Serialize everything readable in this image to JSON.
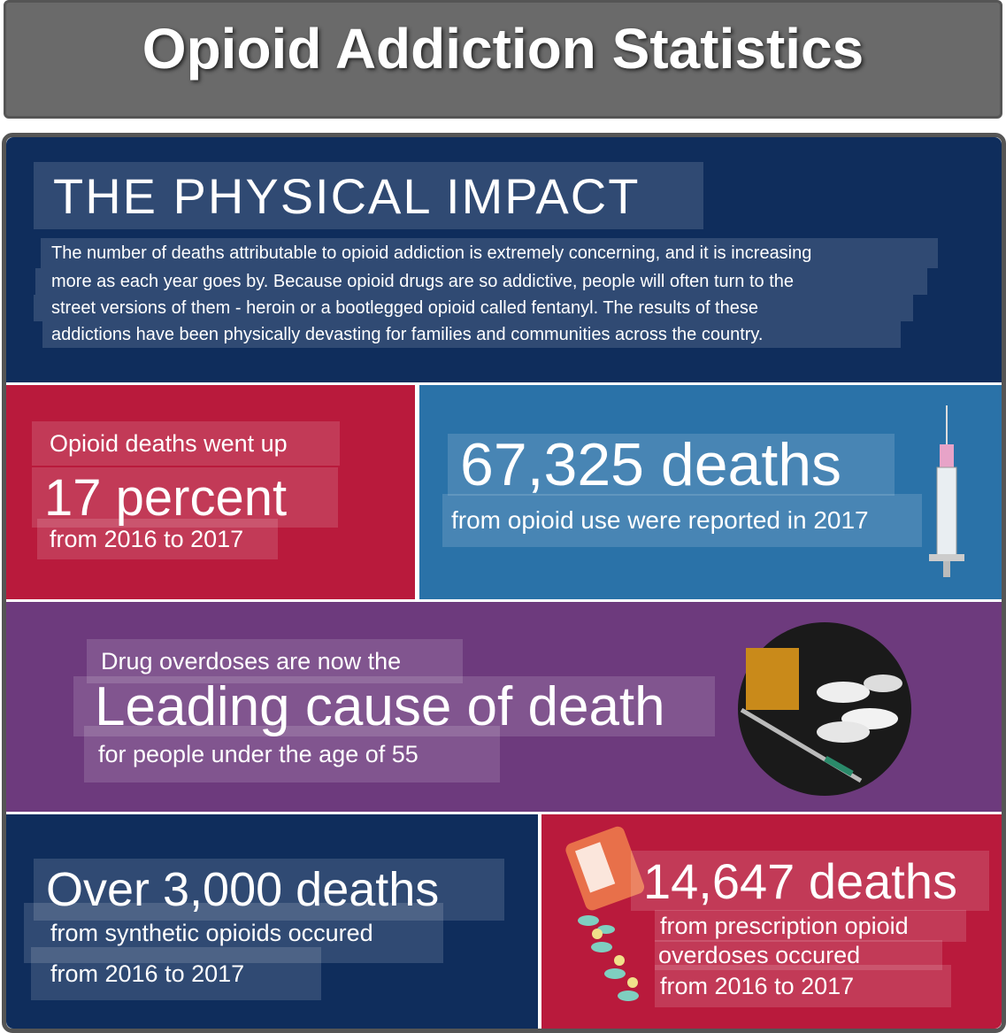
{
  "header": {
    "title": "Opioid Addiction Statistics"
  },
  "intro": {
    "heading": "THE PHYSICAL IMPACT",
    "lines": [
      "The number of deaths attributable to opioid addiction is extremely concerning, and it is increasing",
      "more as each year goes by. Because opioid drugs are so addictive, people will often turn to the",
      "street versions of them - heroin or a bootlegged opioid called fentanyl. The results of these",
      "addictions have been physically devasting for families and communities across the country."
    ]
  },
  "panels": [
    {
      "lines": [
        "Opioid deaths went up",
        "17 percent",
        "from 2016 to 2017"
      ]
    },
    {
      "lines": [
        "67,325 deaths",
        "from opioid use were reported in 2017"
      ]
    },
    {
      "lines": [
        "Drug overdoses are now the",
        "Leading cause of death",
        "for people under the age of 55"
      ]
    },
    {
      "lines": [
        "Over 3,000 deaths",
        "from synthetic opioids occured",
        "from 2016 to 2017"
      ]
    },
    {
      "lines": [
        "14,647 deaths",
        "from prescription opioid",
        "overdoses occured",
        "from 2016 to 2017"
      ]
    }
  ]
}
